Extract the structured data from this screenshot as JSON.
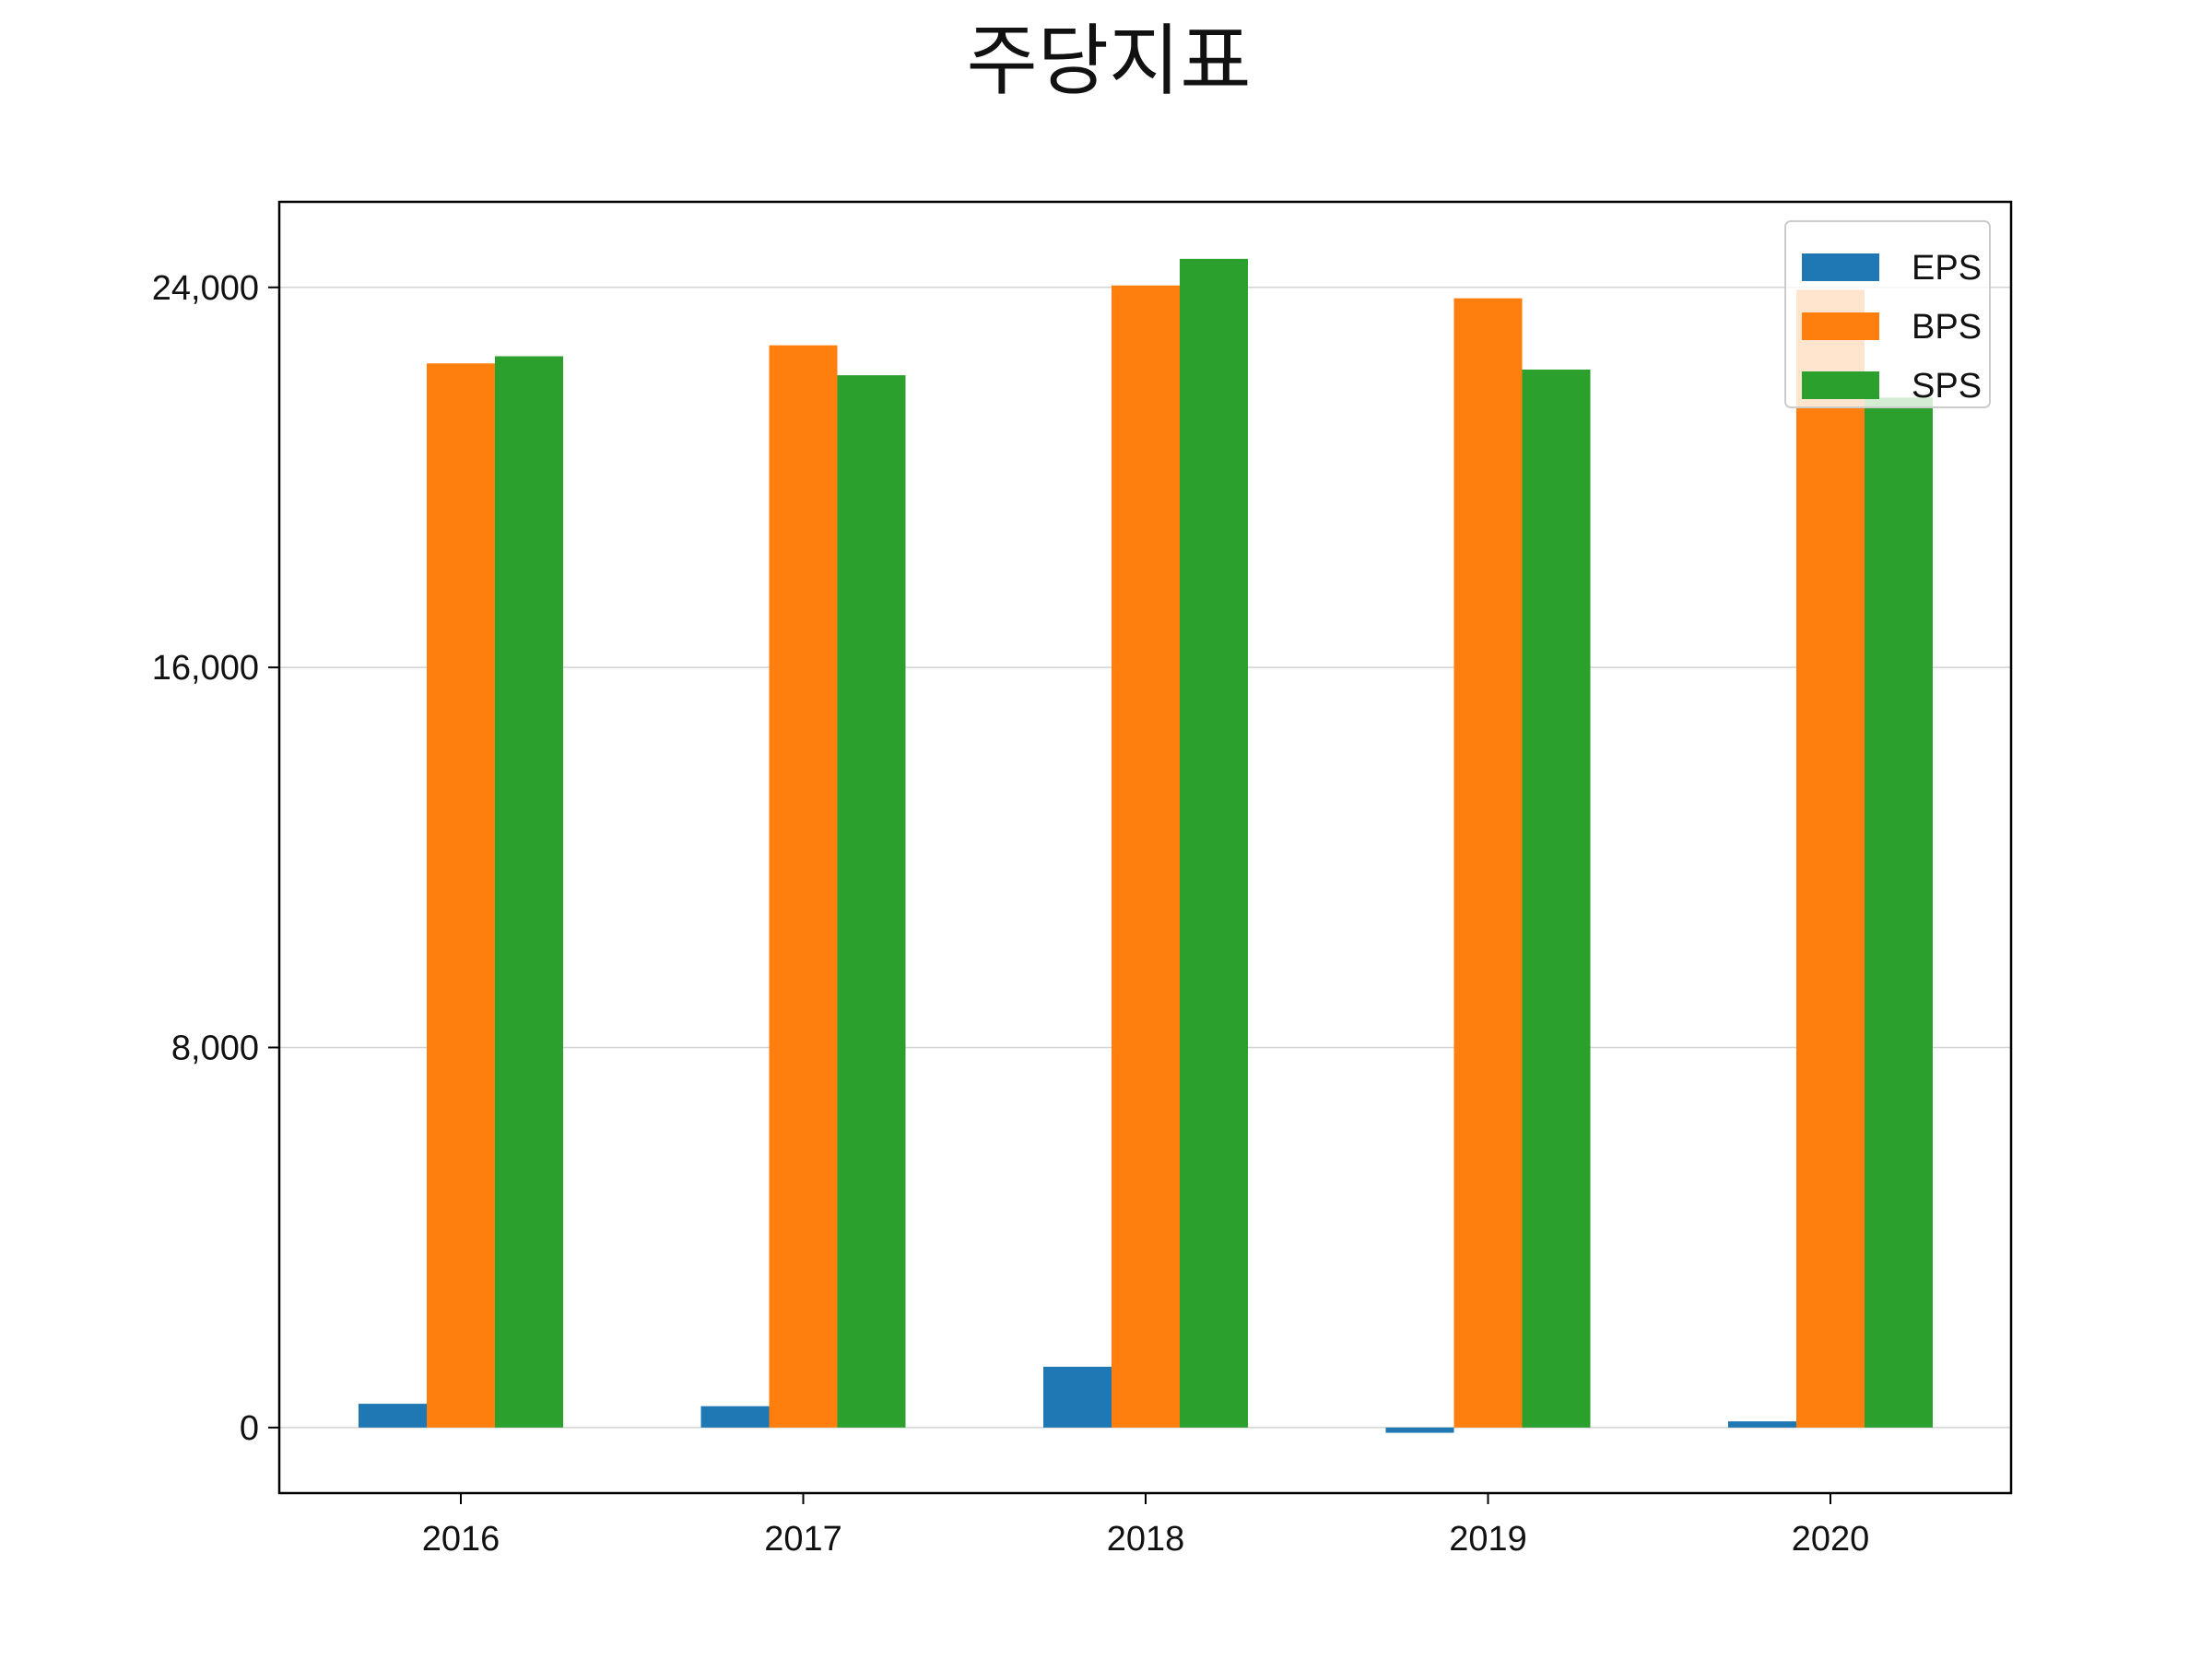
{
  "chart_data": {
    "type": "bar",
    "title": "주당지표",
    "xlabel": "",
    "ylabel": "",
    "categories": [
      "2016",
      "2017",
      "2018",
      "2019",
      "2020"
    ],
    "series": [
      {
        "name": "EPS",
        "color": "#1f77b4",
        "values": [
          500,
          450,
          1280,
          -110,
          130
        ]
      },
      {
        "name": "BPS",
        "color": "#ff7f0e",
        "values": [
          22400,
          22780,
          24040,
          23770,
          23950
        ]
      },
      {
        "name": "SPS",
        "color": "#2ca02c",
        "values": [
          22550,
          22150,
          24600,
          22270,
          21680
        ]
      }
    ],
    "ylim": [
      -1380,
      25800
    ],
    "yticks": [
      0,
      8000,
      16000,
      24000
    ],
    "ytick_labels": [
      "0",
      "8,000",
      "16,000",
      "24,000"
    ],
    "grid": "y",
    "legend": "top-right"
  }
}
